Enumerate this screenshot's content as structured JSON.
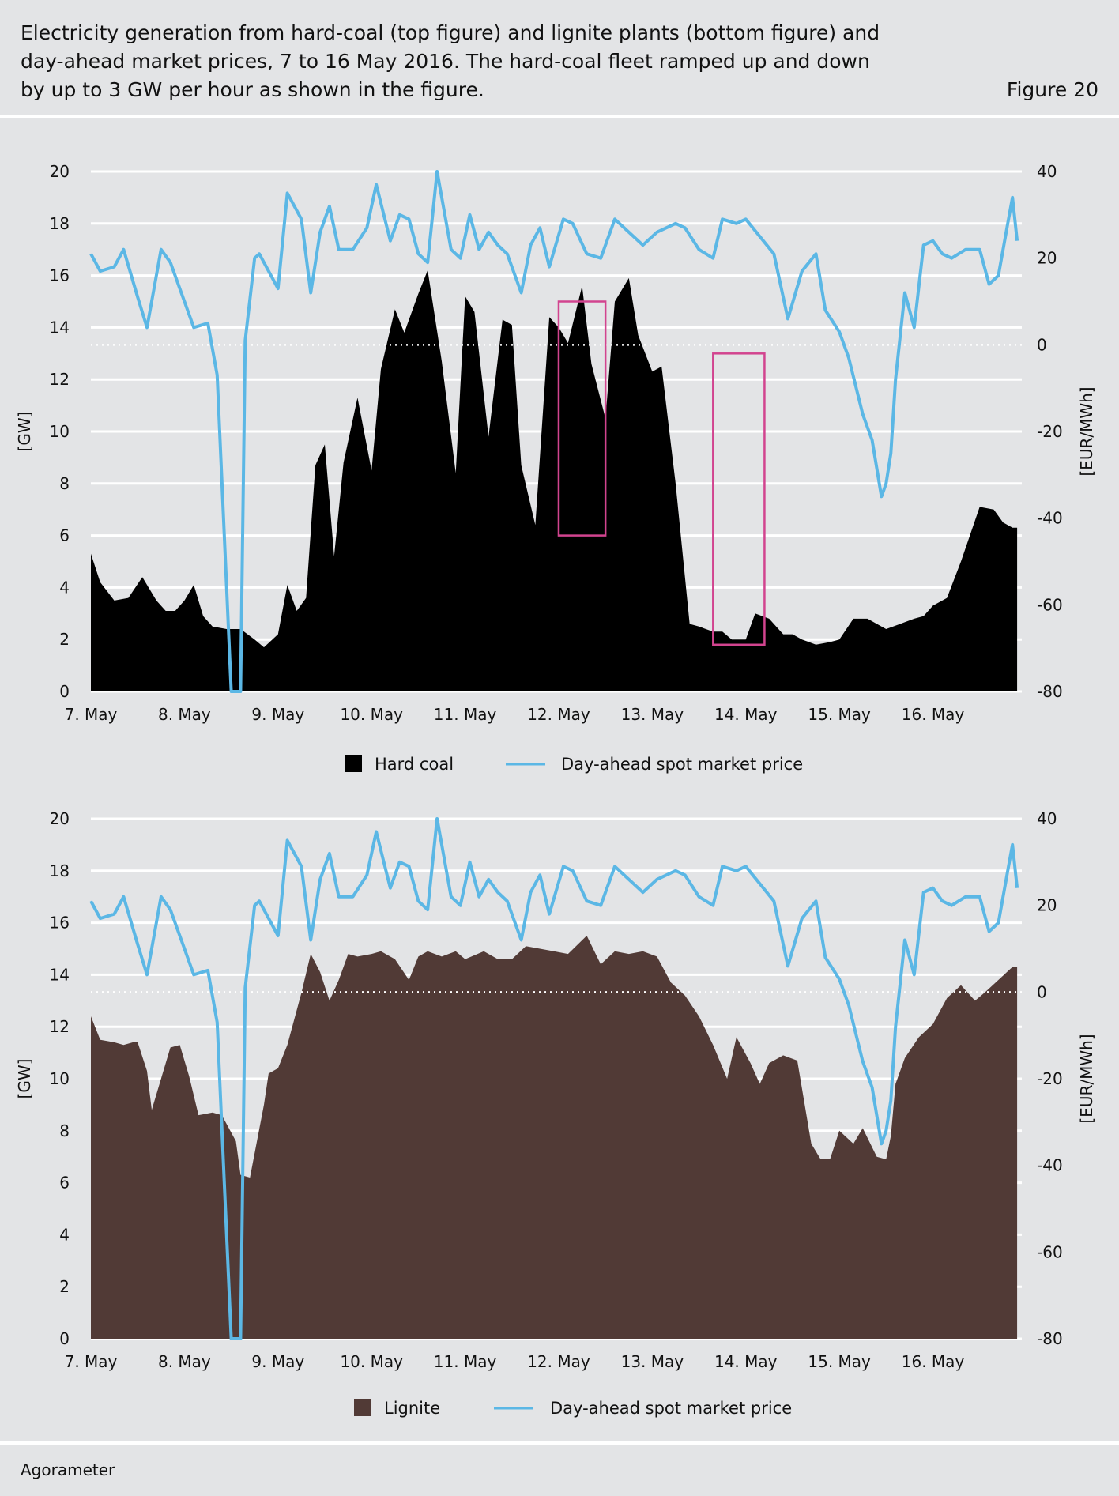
{
  "header": {
    "caption": "Electricity generation from hard-coal (top figure) and lignite plants (bottom figure) and day-ahead market prices, 7 to 16 May 2016. The hard-coal fleet ramped up and down by up to 3 GW per hour as shown in the figure.",
    "figure_label": "Figure 20"
  },
  "footer": {
    "source": "Agorameter"
  },
  "colors": {
    "hard_coal": "#000000",
    "lignite": "#513a36",
    "price": "#5bb7e5",
    "highlight": "#d2448f",
    "zero_line": "#ffffff"
  },
  "chart_data": [
    {
      "type": "area",
      "xlabel": "",
      "ylabel": "[GW]",
      "y2label": "[EUR/MWh]",
      "ylim": [
        0,
        20
      ],
      "y2lim": [
        -80,
        40
      ],
      "y_ticks": [
        "0",
        "2",
        "4",
        "6",
        "8",
        "10",
        "12",
        "14",
        "16",
        "18",
        "20"
      ],
      "y2_ticks": [
        "-80",
        "-60",
        "-40",
        "-20",
        "0",
        "20",
        "40"
      ],
      "x_ticks": [
        "7. May",
        "8. May",
        "9. May",
        "10. May",
        "11. May",
        "12. May",
        "13. May",
        "14. May",
        "15. May",
        "16. May"
      ],
      "grid": true,
      "legend": "bottom",
      "series": [
        {
          "name": "Hard coal",
          "axis": "left",
          "x": [
            7.0,
            7.1,
            7.25,
            7.4,
            7.55,
            7.7,
            7.8,
            7.9,
            8.0,
            8.1,
            8.2,
            8.3,
            8.45,
            8.6,
            8.75,
            8.85,
            9.0,
            9.1,
            9.2,
            9.3,
            9.4,
            9.5,
            9.6,
            9.7,
            9.85,
            10.0,
            10.1,
            10.25,
            10.35,
            10.5,
            10.6,
            10.75,
            10.9,
            11.0,
            11.1,
            11.25,
            11.4,
            11.5,
            11.6,
            11.75,
            11.9,
            12.0,
            12.1,
            12.25,
            12.35,
            12.5,
            12.6,
            12.75,
            12.85,
            13.0,
            13.1,
            13.25,
            13.4,
            13.5,
            13.65,
            13.75,
            13.85,
            14.0,
            14.1,
            14.25,
            14.4,
            14.5,
            14.6,
            14.75,
            14.9,
            15.0,
            15.15,
            15.3,
            15.5,
            15.65,
            15.8,
            15.9,
            16.0,
            16.15,
            16.3,
            16.5,
            16.65,
            16.75,
            16.85,
            16.9
          ],
          "values": [
            5.3,
            4.2,
            3.5,
            3.6,
            4.4,
            3.5,
            3.1,
            3.1,
            3.5,
            4.1,
            2.9,
            2.5,
            2.4,
            2.4,
            2.0,
            1.7,
            2.2,
            4.1,
            3.1,
            3.6,
            8.7,
            9.5,
            5.2,
            8.8,
            11.3,
            8.5,
            12.4,
            14.7,
            13.8,
            15.3,
            16.2,
            12.7,
            8.4,
            15.2,
            14.6,
            9.8,
            14.3,
            14.1,
            8.7,
            6.4,
            14.4,
            14.0,
            13.4,
            15.6,
            12.6,
            10.5,
            15.0,
            15.9,
            13.7,
            12.3,
            12.5,
            8.0,
            2.6,
            2.5,
            2.3,
            2.3,
            2.0,
            2.0,
            3.0,
            2.8,
            2.2,
            2.2,
            2.0,
            1.8,
            1.9,
            2.0,
            2.8,
            2.8,
            2.4,
            2.6,
            2.8,
            2.9,
            3.3,
            3.6,
            5.0,
            7.1,
            7.0,
            6.5,
            6.3,
            6.3
          ]
        },
        {
          "name": "Day-ahead spot market price",
          "axis": "right",
          "x": [
            7.0,
            7.1,
            7.25,
            7.35,
            7.5,
            7.6,
            7.75,
            7.85,
            8.0,
            8.1,
            8.25,
            8.35,
            8.5,
            8.55,
            8.6,
            8.65,
            8.75,
            8.8,
            9.0,
            9.1,
            9.25,
            9.35,
            9.45,
            9.55,
            9.65,
            9.8,
            9.95,
            10.05,
            10.2,
            10.3,
            10.4,
            10.5,
            10.6,
            10.7,
            10.85,
            10.95,
            11.05,
            11.15,
            11.25,
            11.35,
            11.45,
            11.6,
            11.7,
            11.8,
            11.9,
            12.05,
            12.15,
            12.3,
            12.45,
            12.6,
            12.75,
            12.9,
            13.05,
            13.15,
            13.25,
            13.35,
            13.5,
            13.65,
            13.75,
            13.9,
            14.0,
            14.15,
            14.3,
            14.45,
            14.6,
            14.75,
            14.85,
            15.0,
            15.1,
            15.25,
            15.35,
            15.45,
            15.5,
            15.55,
            15.6,
            15.7,
            15.8,
            15.9,
            16.0,
            16.1,
            16.2,
            16.35,
            16.5,
            16.6,
            16.7,
            16.8,
            16.85,
            16.9
          ],
          "values": [
            21,
            17,
            18,
            22,
            11,
            4,
            22,
            19,
            10,
            4,
            5,
            -7,
            -80,
            -80,
            -80,
            1,
            20,
            21,
            13,
            35,
            29,
            12,
            26,
            32,
            22,
            22,
            27,
            37,
            24,
            30,
            29,
            21,
            19,
            40,
            22,
            20,
            30,
            22,
            26,
            23,
            21,
            12,
            23,
            27,
            18,
            29,
            28,
            21,
            20,
            29,
            26,
            23,
            26,
            27,
            28,
            27,
            22,
            20,
            29,
            28,
            29,
            25,
            21,
            6,
            17,
            21,
            8,
            3,
            -3,
            -16,
            -22,
            -35,
            -32,
            -25,
            -8,
            12,
            4,
            23,
            24,
            21,
            20,
            22,
            22,
            14,
            16,
            28,
            34,
            24
          ]
        }
      ],
      "annotations": [
        "box 12.0–12.5 May",
        "box 13.65–14.2 May"
      ]
    },
    {
      "type": "area",
      "xlabel": "",
      "ylabel": "[GW]",
      "y2label": "[EUR/MWh]",
      "ylim": [
        0,
        20
      ],
      "y2lim": [
        -80,
        40
      ],
      "y_ticks": [
        "0",
        "2",
        "4",
        "6",
        "8",
        "10",
        "12",
        "14",
        "16",
        "18",
        "20"
      ],
      "y2_ticks": [
        "-80",
        "-60",
        "-40",
        "-20",
        "0",
        "20",
        "40"
      ],
      "x_ticks": [
        "7. May",
        "8. May",
        "9. May",
        "10. May",
        "11. May",
        "12. May",
        "13. May",
        "14. May",
        "15. May",
        "16. May"
      ],
      "grid": true,
      "legend": "bottom",
      "series": [
        {
          "name": "Lignite",
          "axis": "left",
          "x": [
            7.0,
            7.1,
            7.25,
            7.35,
            7.45,
            7.5,
            7.6,
            7.65,
            7.75,
            7.85,
            7.95,
            8.05,
            8.15,
            8.3,
            8.4,
            8.55,
            8.6,
            8.7,
            8.85,
            8.9,
            9.0,
            9.1,
            9.25,
            9.35,
            9.45,
            9.55,
            9.65,
            9.75,
            9.85,
            10.0,
            10.1,
            10.25,
            10.4,
            10.5,
            10.6,
            10.75,
            10.9,
            11.0,
            11.2,
            11.35,
            11.5,
            11.65,
            11.8,
            11.95,
            12.1,
            12.3,
            12.45,
            12.6,
            12.75,
            12.9,
            13.05,
            13.2,
            13.35,
            13.5,
            13.65,
            13.8,
            13.9,
            14.05,
            14.15,
            14.25,
            14.4,
            14.55,
            14.7,
            14.8,
            14.9,
            15.0,
            15.15,
            15.25,
            15.4,
            15.5,
            15.55,
            15.6,
            15.7,
            15.85,
            16.0,
            16.15,
            16.3,
            16.45,
            16.55,
            16.7,
            16.85,
            16.9
          ],
          "values": [
            12.4,
            11.5,
            11.4,
            11.3,
            11.4,
            11.4,
            10.3,
            8.8,
            10.0,
            11.2,
            11.3,
            10.1,
            8.6,
            8.7,
            8.6,
            7.6,
            6.3,
            6.2,
            9.0,
            10.2,
            10.4,
            11.3,
            13.3,
            14.8,
            14.1,
            13.0,
            13.8,
            14.8,
            14.7,
            14.8,
            14.9,
            14.6,
            13.8,
            14.7,
            14.9,
            14.7,
            14.9,
            14.6,
            14.9,
            14.6,
            14.6,
            15.1,
            15.0,
            14.9,
            14.8,
            15.5,
            14.4,
            14.9,
            14.8,
            14.9,
            14.7,
            13.7,
            13.2,
            12.4,
            11.3,
            10.0,
            11.6,
            10.6,
            9.8,
            10.6,
            10.9,
            10.7,
            7.5,
            6.9,
            6.9,
            8.0,
            7.5,
            8.1,
            7.0,
            6.9,
            7.8,
            9.8,
            10.8,
            11.6,
            12.1,
            13.1,
            13.6,
            13.0,
            13.3,
            13.8,
            14.3,
            14.3
          ]
        },
        {
          "name": "Day-ahead spot market price",
          "axis": "right",
          "x": [
            7.0,
            7.1,
            7.25,
            7.35,
            7.5,
            7.6,
            7.75,
            7.85,
            8.0,
            8.1,
            8.25,
            8.35,
            8.5,
            8.55,
            8.6,
            8.65,
            8.75,
            8.8,
            9.0,
            9.1,
            9.25,
            9.35,
            9.45,
            9.55,
            9.65,
            9.8,
            9.95,
            10.05,
            10.2,
            10.3,
            10.4,
            10.5,
            10.6,
            10.7,
            10.85,
            10.95,
            11.05,
            11.15,
            11.25,
            11.35,
            11.45,
            11.6,
            11.7,
            11.8,
            11.9,
            12.05,
            12.15,
            12.3,
            12.45,
            12.6,
            12.75,
            12.9,
            13.05,
            13.15,
            13.25,
            13.35,
            13.5,
            13.65,
            13.75,
            13.9,
            14.0,
            14.15,
            14.3,
            14.45,
            14.6,
            14.75,
            14.85,
            15.0,
            15.1,
            15.25,
            15.35,
            15.45,
            15.5,
            15.55,
            15.6,
            15.7,
            15.8,
            15.9,
            16.0,
            16.1,
            16.2,
            16.35,
            16.5,
            16.6,
            16.7,
            16.8,
            16.85,
            16.9
          ],
          "values": [
            21,
            17,
            18,
            22,
            11,
            4,
            22,
            19,
            10,
            4,
            5,
            -7,
            -80,
            -80,
            -80,
            1,
            20,
            21,
            13,
            35,
            29,
            12,
            26,
            32,
            22,
            22,
            27,
            37,
            24,
            30,
            29,
            21,
            19,
            40,
            22,
            20,
            30,
            22,
            26,
            23,
            21,
            12,
            23,
            27,
            18,
            29,
            28,
            21,
            20,
            29,
            26,
            23,
            26,
            27,
            28,
            27,
            22,
            20,
            29,
            28,
            29,
            25,
            21,
            6,
            17,
            21,
            8,
            3,
            -3,
            -16,
            -22,
            -35,
            -32,
            -25,
            -8,
            12,
            4,
            23,
            24,
            21,
            20,
            22,
            22,
            14,
            16,
            28,
            34,
            24
          ]
        }
      ]
    }
  ]
}
